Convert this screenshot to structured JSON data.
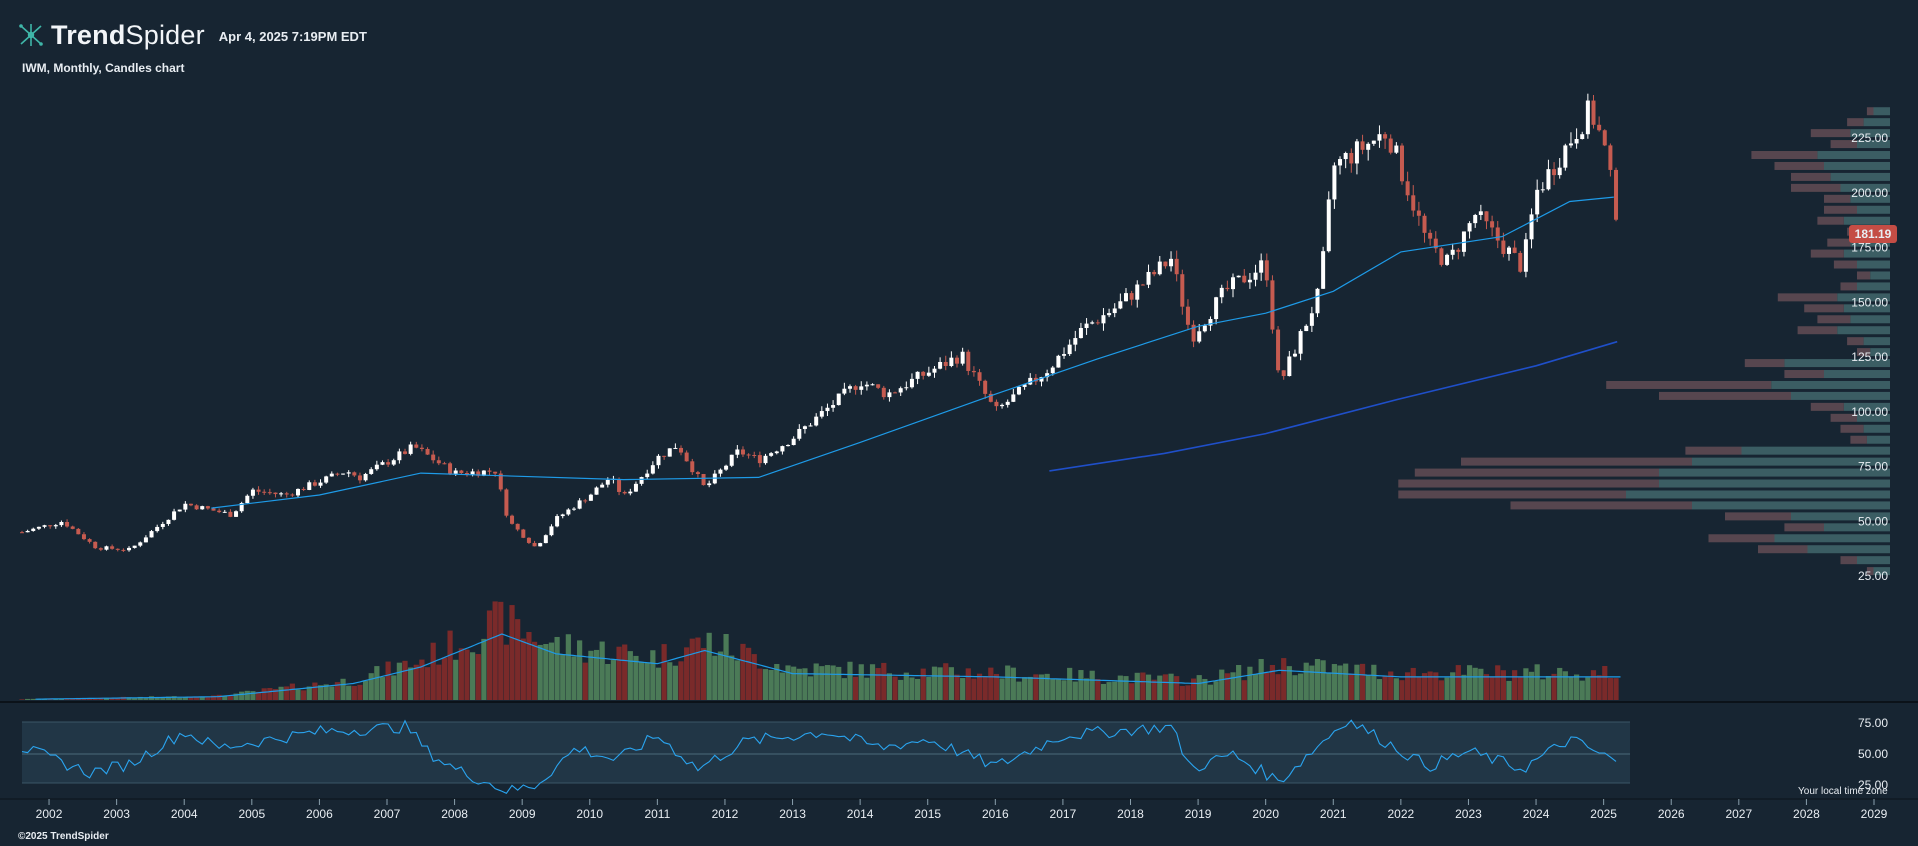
{
  "header": {
    "brand_bold": "Trend",
    "brand_light": "Spider",
    "timestamp": "Apr 4, 2025 7:19PM EDT",
    "description": "IWM, Monthly, Candles chart"
  },
  "footer": {
    "copyright": "©2025 TrendSpider",
    "timezone_note": "Your local time zone"
  },
  "colors": {
    "background": "#172532",
    "up_candle": "#ffffff",
    "down_candle": "#c65b50",
    "ma_short": "#1e9be8",
    "ma_long": "#1f4fc9",
    "volume_up": "#4b7a57",
    "volume_down": "#7a2a2a",
    "rsi_line": "#2aa4ef",
    "price_label_bg": "#c44d45",
    "profile_buy": "#3f6468",
    "profile_sell": "#5e4a52"
  },
  "chart_data": {
    "type": "candlestick",
    "ticker": "IWM",
    "timeframe": "Monthly",
    "last_price": "181.19",
    "price_axis": {
      "ticks": [
        "225.00",
        "200.00",
        "175.00",
        "150.00",
        "125.00",
        "100.00",
        "75.00",
        "50.00",
        "25.00"
      ],
      "range": [
        25,
        240
      ]
    },
    "time_axis": {
      "ticks": [
        "2002",
        "2003",
        "2004",
        "2005",
        "2006",
        "2007",
        "2008",
        "2009",
        "2010",
        "2011",
        "2012",
        "2013",
        "2014",
        "2015",
        "2016",
        "2017",
        "2018",
        "2019",
        "2020",
        "2021",
        "2022",
        "2023",
        "2024",
        "2025",
        "2026",
        "2027",
        "2028",
        "2029"
      ],
      "range": [
        "2001-08",
        "2029-01"
      ]
    },
    "rsi_axis": {
      "ticks": [
        "75.00",
        "50.00",
        "25.00"
      ],
      "range": [
        10,
        90
      ]
    },
    "price_keypoints": [
      {
        "date": "2001.6",
        "close": 45
      },
      {
        "date": "2002.2",
        "close": 50
      },
      {
        "date": "2002.7",
        "close": 38
      },
      {
        "date": "2003.2",
        "close": 37
      },
      {
        "date": "2004.0",
        "close": 58
      },
      {
        "date": "2004.7",
        "close": 53
      },
      {
        "date": "2005.0",
        "close": 64
      },
      {
        "date": "2005.5",
        "close": 62
      },
      {
        "date": "2006.4",
        "close": 73
      },
      {
        "date": "2006.6",
        "close": 70
      },
      {
        "date": "2007.4",
        "close": 84
      },
      {
        "date": "2007.7",
        "close": 78
      },
      {
        "date": "2008.0",
        "close": 72
      },
      {
        "date": "2008.6",
        "close": 73
      },
      {
        "date": "2008.8",
        "close": 50
      },
      {
        "date": "2009.2",
        "close": 38
      },
      {
        "date": "2009.5",
        "close": 51
      },
      {
        "date": "2010.0",
        "close": 62
      },
      {
        "date": "2010.3",
        "close": 70
      },
      {
        "date": "2010.5",
        "close": 61
      },
      {
        "date": "2011.0",
        "close": 79
      },
      {
        "date": "2011.3",
        "close": 85
      },
      {
        "date": "2011.7",
        "close": 65
      },
      {
        "date": "2012.2",
        "close": 82
      },
      {
        "date": "2012.5",
        "close": 78
      },
      {
        "date": "2013.0",
        "close": 88
      },
      {
        "date": "2014.0",
        "close": 114
      },
      {
        "date": "2014.4",
        "close": 108
      },
      {
        "date": "2015.0",
        "close": 118
      },
      {
        "date": "2015.5",
        "close": 126
      },
      {
        "date": "2016.0",
        "close": 100
      },
      {
        "date": "2016.8",
        "close": 120
      },
      {
        "date": "2017.3",
        "close": 138
      },
      {
        "date": "2017.8",
        "close": 148
      },
      {
        "date": "2018.6",
        "close": 170
      },
      {
        "date": "2018.9",
        "close": 134
      },
      {
        "date": "2019.4",
        "close": 155
      },
      {
        "date": "2020.0",
        "close": 168
      },
      {
        "date": "2020.2",
        "close": 112
      },
      {
        "date": "2020.8",
        "close": 155
      },
      {
        "date": "2021.0",
        "close": 212
      },
      {
        "date": "2021.8",
        "close": 228
      },
      {
        "date": "2022.4",
        "close": 176
      },
      {
        "date": "2022.7",
        "close": 168
      },
      {
        "date": "2023.1",
        "close": 190
      },
      {
        "date": "2023.8",
        "close": 166
      },
      {
        "date": "2024.0",
        "close": 200
      },
      {
        "date": "2024.8",
        "close": 238
      },
      {
        "date": "2025.0",
        "close": 222
      },
      {
        "date": "2025.25",
        "close": 181
      }
    ],
    "series": [
      {
        "name": "Moving average (short)",
        "points": [
          {
            "date": "2004.4",
            "value": 56
          },
          {
            "date": "2006.0",
            "value": 62
          },
          {
            "date": "2007.5",
            "value": 72
          },
          {
            "date": "2008.5",
            "value": 71
          },
          {
            "date": "2010.5",
            "value": 69
          },
          {
            "date": "2012.5",
            "value": 70
          },
          {
            "date": "2014.0",
            "value": 86
          },
          {
            "date": "2016.0",
            "value": 108
          },
          {
            "date": "2017.5",
            "value": 124
          },
          {
            "date": "2019.0",
            "value": 139
          },
          {
            "date": "2020.0",
            "value": 145
          },
          {
            "date": "2021.0",
            "value": 155
          },
          {
            "date": "2022.0",
            "value": 173
          },
          {
            "date": "2023.5",
            "value": 180
          },
          {
            "date": "2024.5",
            "value": 196
          },
          {
            "date": "2025.15",
            "value": 198
          }
        ]
      },
      {
        "name": "Moving average (long)",
        "points": [
          {
            "date": "2016.8",
            "value": 73
          },
          {
            "date": "2018.5",
            "value": 81
          },
          {
            "date": "2020.0",
            "value": 90
          },
          {
            "date": "2022.0",
            "value": 106
          },
          {
            "date": "2024.0",
            "value": 121
          },
          {
            "date": "2025.2",
            "value": 132
          }
        ]
      }
    ],
    "rsi_keypoints": [
      {
        "date": "2001.6",
        "value": 55
      },
      {
        "date": "2002.6",
        "value": 35
      },
      {
        "date": "2003.2",
        "value": 42
      },
      {
        "date": "2004.0",
        "value": 68
      },
      {
        "date": "2004.5",
        "value": 55
      },
      {
        "date": "2006.0",
        "value": 68
      },
      {
        "date": "2007.3",
        "value": 72
      },
      {
        "date": "2007.6",
        "value": 52
      },
      {
        "date": "2008.0",
        "value": 38
      },
      {
        "date": "2008.8",
        "value": 20
      },
      {
        "date": "2009.2",
        "value": 25
      },
      {
        "date": "2009.8",
        "value": 55
      },
      {
        "date": "2010.4",
        "value": 45
      },
      {
        "date": "2011.0",
        "value": 65
      },
      {
        "date": "2011.6",
        "value": 38
      },
      {
        "date": "2012.3",
        "value": 60
      },
      {
        "date": "2013.5",
        "value": 68
      },
      {
        "date": "2014.3",
        "value": 55
      },
      {
        "date": "2015.0",
        "value": 62
      },
      {
        "date": "2016.0",
        "value": 40
      },
      {
        "date": "2017.0",
        "value": 65
      },
      {
        "date": "2018.6",
        "value": 72
      },
      {
        "date": "2018.9",
        "value": 38
      },
      {
        "date": "2019.5",
        "value": 50
      },
      {
        "date": "2020.2",
        "value": 28
      },
      {
        "date": "2021.2",
        "value": 78
      },
      {
        "date": "2022.4",
        "value": 40
      },
      {
        "date": "2023.0",
        "value": 52
      },
      {
        "date": "2023.8",
        "value": 38
      },
      {
        "date": "2024.5",
        "value": 62
      },
      {
        "date": "2025.25",
        "value": 42
      }
    ],
    "volume_keypoints": [
      {
        "date": "2001.6",
        "value": 0.01
      },
      {
        "date": "2004.5",
        "value": 0.05
      },
      {
        "date": "2006.5",
        "value": 0.25
      },
      {
        "date": "2007.5",
        "value": 0.5
      },
      {
        "date": "2008.7",
        "value": 1.0
      },
      {
        "date": "2009.5",
        "value": 0.7
      },
      {
        "date": "2011.0",
        "value": 0.55
      },
      {
        "date": "2011.7",
        "value": 0.75
      },
      {
        "date": "2013.0",
        "value": 0.4
      },
      {
        "date": "2016.0",
        "value": 0.35
      },
      {
        "date": "2019.0",
        "value": 0.25
      },
      {
        "date": "2020.2",
        "value": 0.45
      },
      {
        "date": "2022.0",
        "value": 0.35
      },
      {
        "date": "2025.25",
        "value": 0.35
      }
    ],
    "volume_profile": [
      {
        "price": 237,
        "buy": 0.05,
        "sell": 0.02
      },
      {
        "price": 232,
        "buy": 0.08,
        "sell": 0.05
      },
      {
        "price": 227,
        "buy": 0.12,
        "sell": 0.12
      },
      {
        "price": 222,
        "buy": 0.1,
        "sell": 0.08
      },
      {
        "price": 217,
        "buy": 0.22,
        "sell": 0.2
      },
      {
        "price": 212,
        "buy": 0.2,
        "sell": 0.15
      },
      {
        "price": 207,
        "buy": 0.18,
        "sell": 0.12
      },
      {
        "price": 202,
        "buy": 0.15,
        "sell": 0.15
      },
      {
        "price": 197,
        "buy": 0.12,
        "sell": 0.08
      },
      {
        "price": 192,
        "buy": 0.1,
        "sell": 0.1
      },
      {
        "price": 187,
        "buy": 0.14,
        "sell": 0.08
      },
      {
        "price": 182,
        "buy": 0.08,
        "sell": 0.05
      },
      {
        "price": 177,
        "buy": 0.12,
        "sell": 0.07
      },
      {
        "price": 172,
        "buy": 0.14,
        "sell": 0.1
      },
      {
        "price": 167,
        "buy": 0.1,
        "sell": 0.07
      },
      {
        "price": 162,
        "buy": 0.06,
        "sell": 0.04
      },
      {
        "price": 157,
        "buy": 0.1,
        "sell": 0.05
      },
      {
        "price": 152,
        "buy": 0.16,
        "sell": 0.18
      },
      {
        "price": 147,
        "buy": 0.14,
        "sell": 0.12
      },
      {
        "price": 142,
        "buy": 0.12,
        "sell": 0.1
      },
      {
        "price": 137,
        "buy": 0.16,
        "sell": 0.12
      },
      {
        "price": 132,
        "buy": 0.08,
        "sell": 0.05
      },
      {
        "price": 127,
        "buy": 0.06,
        "sell": 0.04
      },
      {
        "price": 122,
        "buy": 0.32,
        "sell": 0.12
      },
      {
        "price": 117,
        "buy": 0.2,
        "sell": 0.12
      },
      {
        "price": 112,
        "buy": 0.36,
        "sell": 0.5
      },
      {
        "price": 107,
        "buy": 0.3,
        "sell": 0.4
      },
      {
        "price": 102,
        "buy": 0.14,
        "sell": 0.1
      },
      {
        "price": 97,
        "buy": 0.1,
        "sell": 0.08
      },
      {
        "price": 92,
        "buy": 0.08,
        "sell": 0.07
      },
      {
        "price": 87,
        "buy": 0.07,
        "sell": 0.05
      },
      {
        "price": 82,
        "buy": 0.45,
        "sell": 0.17
      },
      {
        "price": 77,
        "buy": 0.6,
        "sell": 0.7
      },
      {
        "price": 72,
        "buy": 0.7,
        "sell": 0.74
      },
      {
        "price": 67,
        "buy": 0.7,
        "sell": 0.79
      },
      {
        "price": 62,
        "buy": 0.8,
        "sell": 0.69
      },
      {
        "price": 57,
        "buy": 0.6,
        "sell": 0.55
      },
      {
        "price": 52,
        "buy": 0.3,
        "sell": 0.2
      },
      {
        "price": 47,
        "buy": 0.2,
        "sell": 0.12
      },
      {
        "price": 42,
        "buy": 0.35,
        "sell": 0.2
      },
      {
        "price": 37,
        "buy": 0.25,
        "sell": 0.15
      },
      {
        "price": 32,
        "buy": 0.1,
        "sell": 0.05
      },
      {
        "price": 27,
        "buy": 0.05,
        "sell": 0.02
      }
    ]
  }
}
